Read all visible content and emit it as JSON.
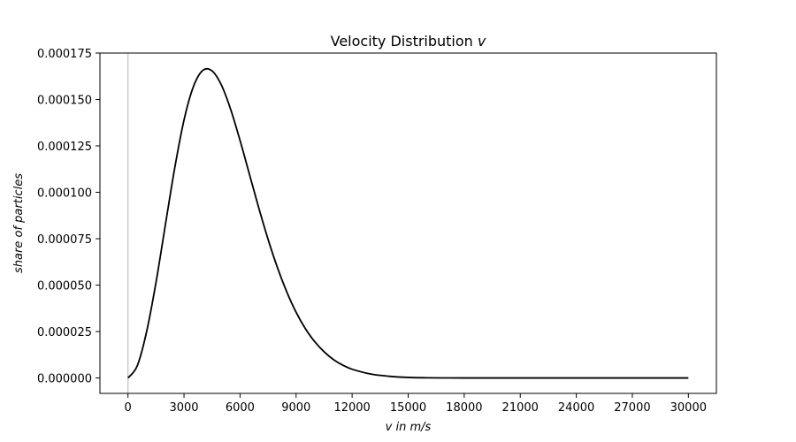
{
  "chart_data": {
    "type": "line",
    "title": "Velocity Distribution",
    "title_variable": "v",
    "xlabel": "v in m/s",
    "ylabel": "share of particles",
    "xlim": [
      -1500,
      31500
    ],
    "ylim": [
      -8.3e-06,
      0.000175
    ],
    "x_ticks": [
      0,
      3000,
      6000,
      9000,
      12000,
      15000,
      18000,
      21000,
      24000,
      27000,
      30000
    ],
    "x_tick_labels": [
      "0",
      "3000",
      "6000",
      "9000",
      "12000",
      "15000",
      "18000",
      "21000",
      "24000",
      "27000",
      "30000"
    ],
    "y_ticks": [
      0,
      2.5e-05,
      5e-05,
      7.5e-05,
      0.0001,
      0.000125,
      0.00015,
      0.000175
    ],
    "y_tick_labels": [
      "0.000000",
      "0.000025",
      "0.000050",
      "0.000075",
      "0.000100",
      "0.000125",
      "0.000150",
      "0.000175"
    ],
    "grid": false,
    "legend": "none",
    "reference_line": {
      "x": 0,
      "color": "#cccccc"
    },
    "series": [
      {
        "color": "#000000",
        "x": [
          0,
          500,
          1000,
          1500,
          2000,
          2500,
          3000,
          3500,
          4000,
          4500,
          5000,
          5500,
          6000,
          6500,
          7000,
          7500,
          8000,
          8500,
          9000,
          9500,
          10000,
          10500,
          11000,
          11500,
          12000,
          13000,
          14000,
          15000,
          16000,
          17000,
          18000,
          20000,
          22000,
          24000,
          26000,
          28000,
          30000
        ],
        "y": [
          0,
          6.6e-06,
          2.5e-05,
          5.14e-05,
          8.23e-05,
          0.0001129,
          0.0001389,
          0.0001568,
          0.0001656,
          0.0001654,
          0.0001578,
          0.0001446,
          0.0001279,
          0.0001098,
          9.17e-05,
          7.47e-05,
          5.95e-05,
          4.64e-05,
          3.54e-05,
          2.65e-05,
          1.95e-05,
          1.41e-05,
          9.9e-06,
          6.9e-06,
          4.7e-06,
          2.1e-06,
          9e-07,
          3e-07,
          1e-07,
          4e-08,
          1e-08,
          0,
          0,
          0,
          0,
          0,
          0
        ]
      }
    ]
  }
}
